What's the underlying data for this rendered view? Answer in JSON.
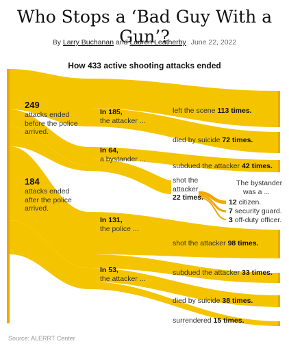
{
  "header": {
    "title": "Who Stops a ‘Bad Guy With a Gun’?",
    "by": "By",
    "author1": "Larry Buchanan",
    "and": "and",
    "author2": "Lauren Leatherby",
    "date": "June 22, 2022",
    "subtitle": "How 433 active shooting attacks ended"
  },
  "colors": {
    "flow": "#f5c400",
    "node_edge": "#f0a800"
  },
  "left": {
    "before": {
      "count": "249",
      "text": [
        "attacks ended",
        "before the police",
        "arrived."
      ]
    },
    "after": {
      "count": "184",
      "text": [
        "attacks ended",
        "after the police",
        "arrived."
      ]
    }
  },
  "middle": {
    "attacker1": {
      "count": "In 185,",
      "text": "the attacker ..."
    },
    "bystander": {
      "count": "In 64,",
      "text": "a bystander ..."
    },
    "police": {
      "count": "In 131,",
      "text": "the police ..."
    },
    "attacker2": {
      "count": "In 53,",
      "text": "the attacker ..."
    }
  },
  "outcomes": {
    "left_scene": {
      "text": "left the scene",
      "count": "113 times."
    },
    "suicide1": {
      "text": "died by suicide",
      "count": "72 times."
    },
    "subdued1": {
      "text": "subdued the attacker",
      "count": "42 times."
    },
    "shot_by_bystander": {
      "line1": "shot the",
      "line2": "attacker",
      "count": "22 times."
    },
    "shot_by_police": {
      "text": "shot the attacker",
      "count": "98 times."
    },
    "subdued2": {
      "text": "subdued the attacker",
      "count": "33 times."
    },
    "suicide2": {
      "text": "died by suicide",
      "count": "38 times."
    },
    "surrendered": {
      "text": "surrendered",
      "count": "15 times."
    }
  },
  "bystander_types": {
    "heading1": "The bystander",
    "heading2": "was a ...",
    "items": [
      {
        "count": "12",
        "text": "citizen."
      },
      {
        "count": "7",
        "text": "security guard."
      },
      {
        "count": "3",
        "text": "off-duty officer."
      }
    ]
  },
  "source": "Source: ALERRT Center"
}
